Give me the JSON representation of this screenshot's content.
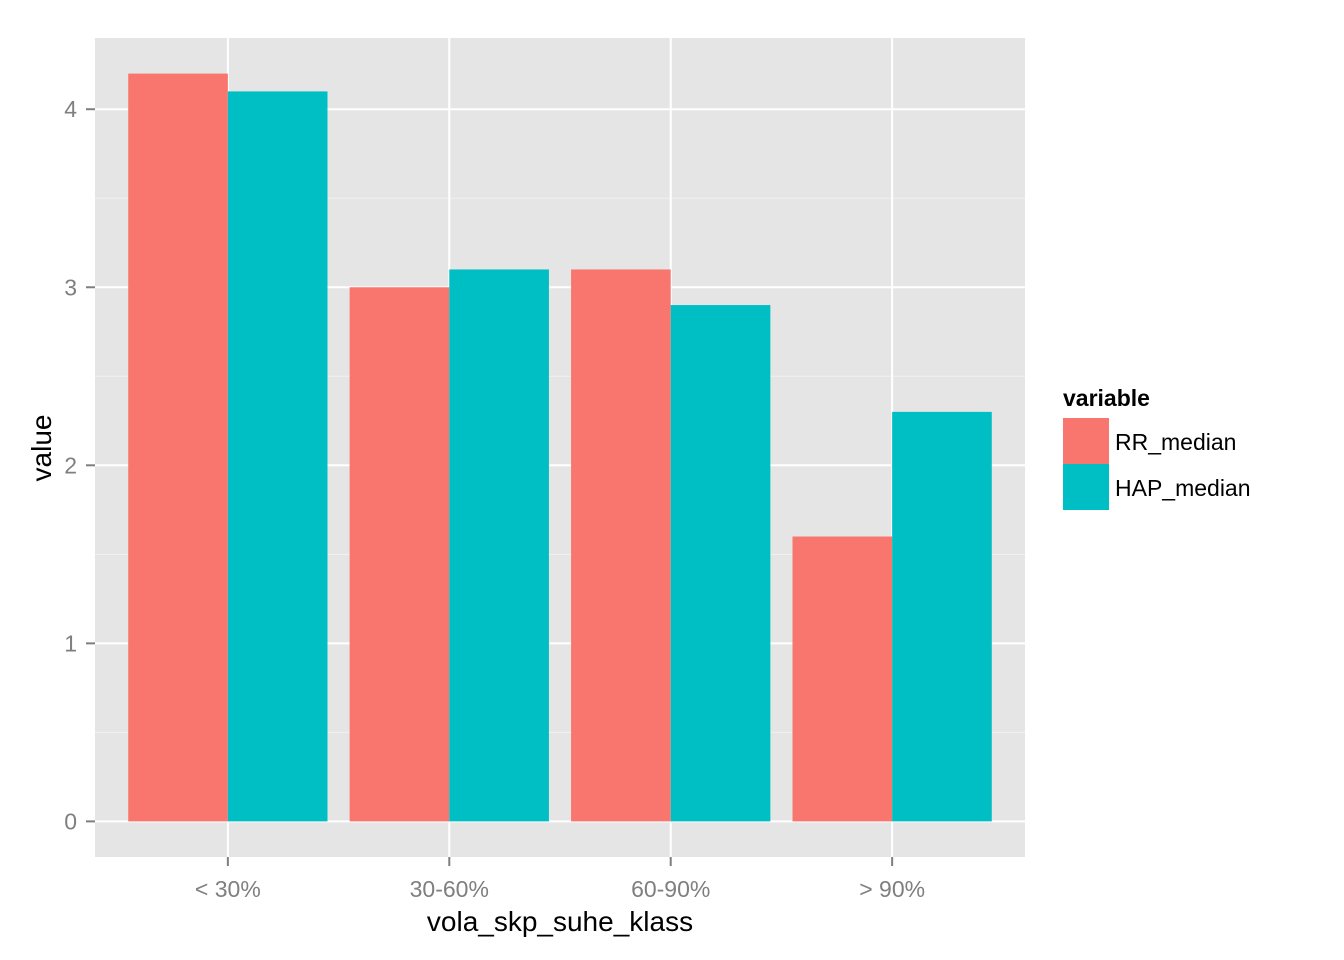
{
  "chart_data": {
    "type": "bar",
    "categories": [
      "< 30%",
      "30-60%",
      "60-90%",
      "> 90%"
    ],
    "series": [
      {
        "name": "RR_median",
        "values": [
          4.2,
          3.0,
          3.1,
          1.6
        ],
        "color": "#F8766D"
      },
      {
        "name": "HAP_median",
        "values": [
          4.1,
          3.1,
          2.9,
          2.3
        ],
        "color": "#00BFC4"
      }
    ],
    "y_ticks": [
      "0",
      "1",
      "2",
      "3",
      "4"
    ],
    "xlabel": "vola_skp_suhe_klass",
    "ylabel": "value",
    "ylim": [
      -0.2,
      4.4
    ],
    "grid": true,
    "legend": {
      "title": "variable",
      "placement": "right"
    },
    "panel_background": "#E5E5E5",
    "gridline_color": "#FFFFFF"
  }
}
